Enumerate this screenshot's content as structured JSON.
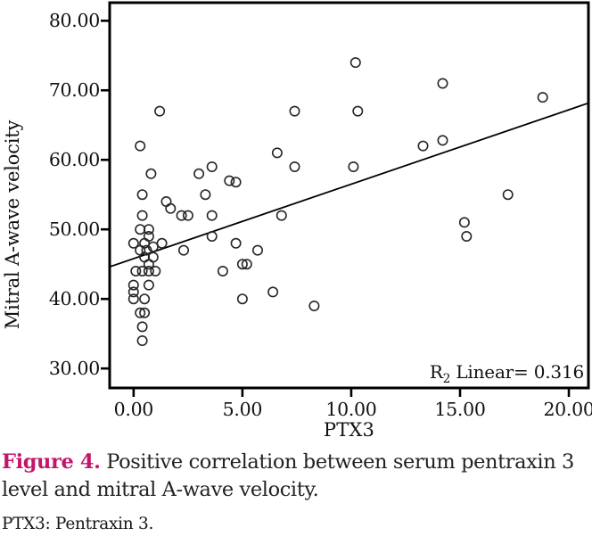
{
  "figure": {
    "caption_label": "Figure 4.",
    "caption_text": " Positive correlation between serum pentraxin 3 level and mitral A-wave velocity.",
    "footnote": "PTX3: Pentraxin 3.",
    "accent_color": "#c2166b"
  },
  "chart_data": {
    "type": "scatter",
    "title": "",
    "xlabel": "PTX3",
    "ylabel": "Mitral A-wave velocity",
    "xlim": [
      -1.1,
      20.9
    ],
    "ylim": [
      27.2,
      82.6
    ],
    "x_ticks": [
      0,
      5,
      10,
      15,
      20
    ],
    "x_tick_labels": [
      "0.00",
      "5.00",
      "10.00",
      "15.00",
      "20.00"
    ],
    "y_ticks": [
      30,
      40,
      50,
      60,
      70,
      80
    ],
    "y_tick_labels": [
      "30.00",
      "40.00",
      "50.00",
      "60.00",
      "70.00",
      "80.00"
    ],
    "grid": false,
    "legend": "none",
    "marker": {
      "shape": "circle",
      "fill": "none",
      "stroke": "#262626"
    },
    "annotation": {
      "prefix": "R",
      "sub": "2",
      "rest": " Linear= 0.316"
    },
    "regression_line": {
      "slope": 1.07,
      "intercept": 45.8,
      "x_start": -1.1,
      "x_end": 20.9,
      "r2": 0.316
    },
    "points": [
      [
        0.3,
        62
      ],
      [
        1.2,
        67
      ],
      [
        0.8,
        58
      ],
      [
        0.4,
        55
      ],
      [
        1.5,
        54
      ],
      [
        1.7,
        53
      ],
      [
        2.2,
        52
      ],
      [
        2.5,
        52
      ],
      [
        0.4,
        52
      ],
      [
        0.3,
        50
      ],
      [
        0.7,
        50
      ],
      [
        0.7,
        49
      ],
      [
        0.0,
        48
      ],
      [
        0.5,
        48
      ],
      [
        1.3,
        48
      ],
      [
        0.9,
        47.5
      ],
      [
        0.3,
        47
      ],
      [
        0.6,
        47
      ],
      [
        0.5,
        46
      ],
      [
        0.9,
        46
      ],
      [
        0.7,
        45
      ],
      [
        0.1,
        44
      ],
      [
        0.4,
        44
      ],
      [
        0.7,
        44
      ],
      [
        1.0,
        44
      ],
      [
        0.0,
        42
      ],
      [
        0.7,
        42
      ],
      [
        0.0,
        41
      ],
      [
        0.0,
        40
      ],
      [
        0.5,
        40
      ],
      [
        0.3,
        38
      ],
      [
        0.5,
        38
      ],
      [
        0.4,
        36
      ],
      [
        0.4,
        34
      ],
      [
        2.3,
        47
      ],
      [
        3.0,
        58
      ],
      [
        3.6,
        59
      ],
      [
        3.3,
        55
      ],
      [
        3.6,
        52
      ],
      [
        3.6,
        49
      ],
      [
        4.1,
        44
      ],
      [
        4.4,
        57
      ],
      [
        4.7,
        56.8
      ],
      [
        4.7,
        48
      ],
      [
        5.0,
        45
      ],
      [
        5.2,
        45
      ],
      [
        5.7,
        47
      ],
      [
        5.0,
        40
      ],
      [
        6.4,
        41
      ],
      [
        6.6,
        61
      ],
      [
        6.8,
        52
      ],
      [
        7.4,
        67
      ],
      [
        7.4,
        59
      ],
      [
        8.3,
        39
      ],
      [
        10.2,
        74
      ],
      [
        10.3,
        67
      ],
      [
        10.1,
        59
      ],
      [
        13.3,
        62
      ],
      [
        14.2,
        62.8
      ],
      [
        14.2,
        71
      ],
      [
        15.2,
        51
      ],
      [
        15.3,
        49
      ],
      [
        17.2,
        55
      ],
      [
        18.8,
        69
      ]
    ]
  }
}
